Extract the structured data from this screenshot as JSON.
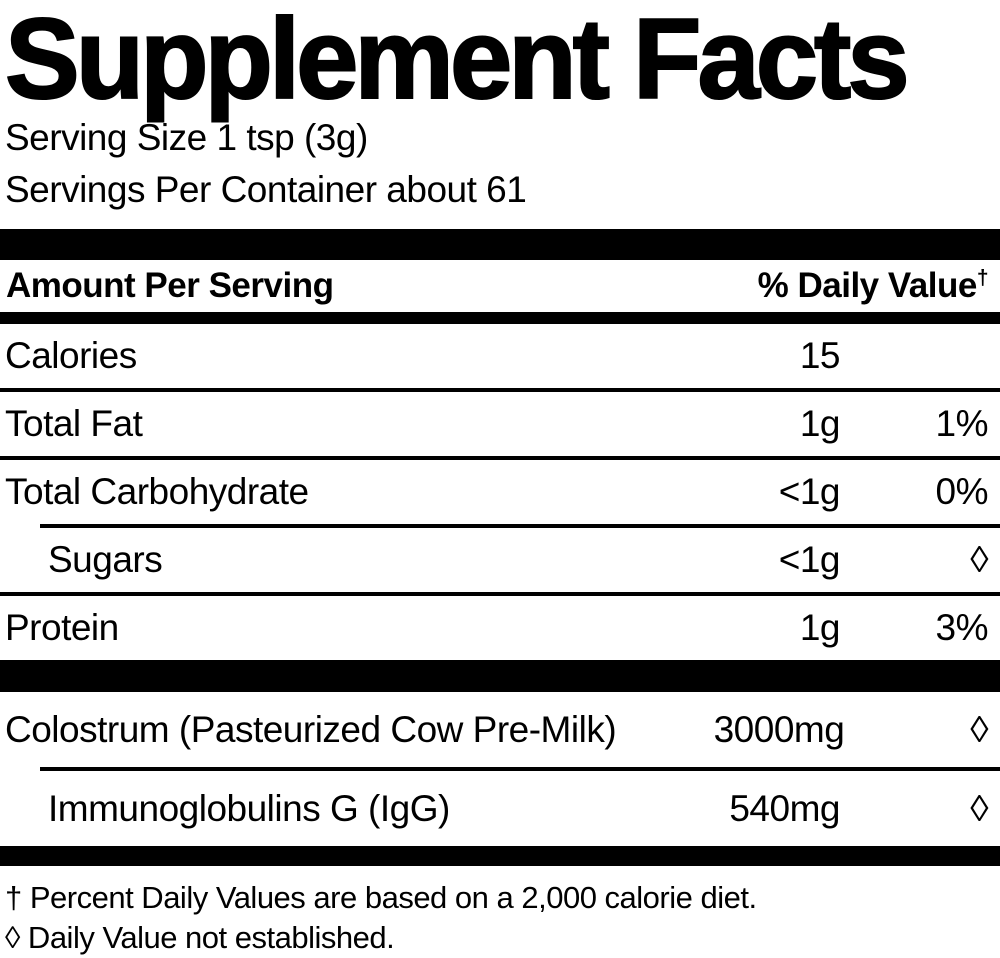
{
  "label": {
    "title": "Supplement Facts",
    "serving_info": {
      "serving_size": "Serving Size 1 tsp (3g)",
      "servings_per_container": "Servings Per Container about 61"
    },
    "columns": {
      "amount_header": "Amount Per Serving",
      "dv_header": "% Daily Value",
      "dv_header_symbol": "†"
    },
    "nutrients": [
      {
        "name": "Calories",
        "amount": "15",
        "dv": ""
      },
      {
        "name": "Total Fat",
        "amount": "1g",
        "dv": "1%"
      },
      {
        "name": "Total Carbohydrate",
        "amount": "<1g",
        "dv": "0%"
      },
      {
        "name": "Sugars",
        "amount": "<1g",
        "dv": "◊"
      },
      {
        "name": "Protein",
        "amount": "1g",
        "dv": "3%"
      }
    ],
    "ingredients": [
      {
        "name": "Colostrum (Pasteurized Cow Pre-Milk)",
        "amount": "3000mg",
        "dv": "◊"
      },
      {
        "name": "Immunoglobulins G (IgG)",
        "amount": "540mg",
        "dv": "◊"
      }
    ],
    "footnotes": [
      "† Percent Daily Values are based on a 2,000 calorie diet.",
      "◊ Daily Value not established."
    ]
  }
}
